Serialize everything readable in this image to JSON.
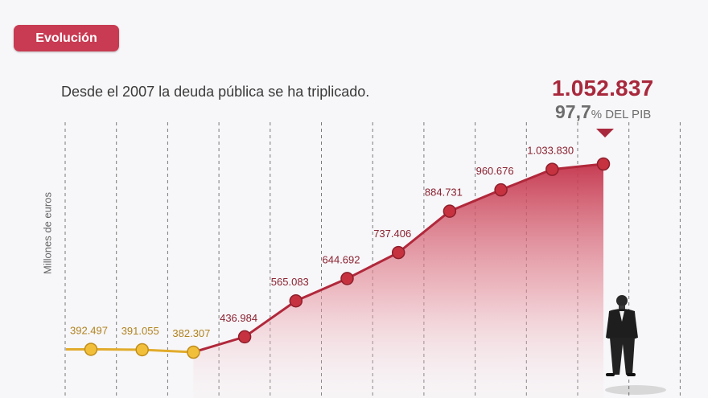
{
  "badge": "Evolución",
  "subtitle": "Desde el 2007 la deuda pública se ha triplicado.",
  "highlight": {
    "value": "1.052.837",
    "pct_number": "97,7",
    "pct_text": "% DEL PIB"
  },
  "colors": {
    "badge": "#c83b52",
    "early_series": "#e1ab2b",
    "main_series": "#b1283b",
    "highlight": "#a8283c"
  },
  "chart_data": {
    "type": "line",
    "ylabel": "Millones de euros",
    "title": "",
    "values": [
      392497,
      391055,
      382307,
      436984,
      565083,
      644692,
      737406,
      884731,
      960676,
      1033830,
      1052837
    ],
    "labels": [
      "392.497",
      "391.055",
      "382.307",
      "436.984",
      "565.083",
      "644.692",
      "737.406",
      "884.731",
      "960.676",
      "1.033.830",
      ""
    ],
    "grid": "vertical dashed",
    "area_fill": true
  }
}
